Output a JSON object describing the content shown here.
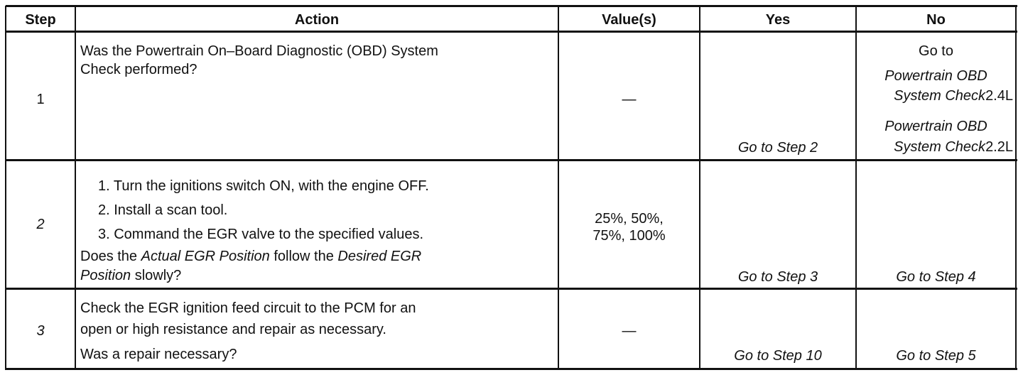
{
  "headers": [
    "Step",
    "Action",
    "Value(s)",
    "Yes",
    "No"
  ],
  "rows": [
    {
      "step": "1",
      "action_lines": [
        "Was the Powertrain On–Board Diagnostic (OBD) System",
        "Check performed?"
      ],
      "value": "—",
      "yes": "Go to Step 2",
      "no": {
        "prefix": "Go to",
        "links": [
          {
            "line1": "Powertrain OBD",
            "line2": "System Check",
            "suffix": "2.4L"
          },
          {
            "line1": "Powertrain OBD",
            "line2": "System Check",
            "suffix": "2.2L"
          }
        ]
      }
    },
    {
      "step": "2",
      "steps": [
        "1. Turn the ignitions switch ON, with the engine OFF.",
        "2. Install a scan tool.",
        "3. Command the EGR valve to the specified values."
      ],
      "question": {
        "a": "Does the ",
        "b": "Actual EGR Position",
        "c": " follow the ",
        "d": "Desired EGR",
        "e": "Position",
        "f": " slowly?"
      },
      "value_lines": [
        "25%, 50%,",
        "75%, 100%"
      ],
      "yes": "Go to Step 3",
      "no": "Go to Step 4"
    },
    {
      "step": "3",
      "action_lines": [
        "Check the EGR ignition feed circuit to the PCM for an",
        "open or high resistance and repair as necessary.",
        "Was a repair necessary?"
      ],
      "value": "—",
      "yes": "Go to Step 10",
      "no": "Go to Step 5"
    }
  ]
}
